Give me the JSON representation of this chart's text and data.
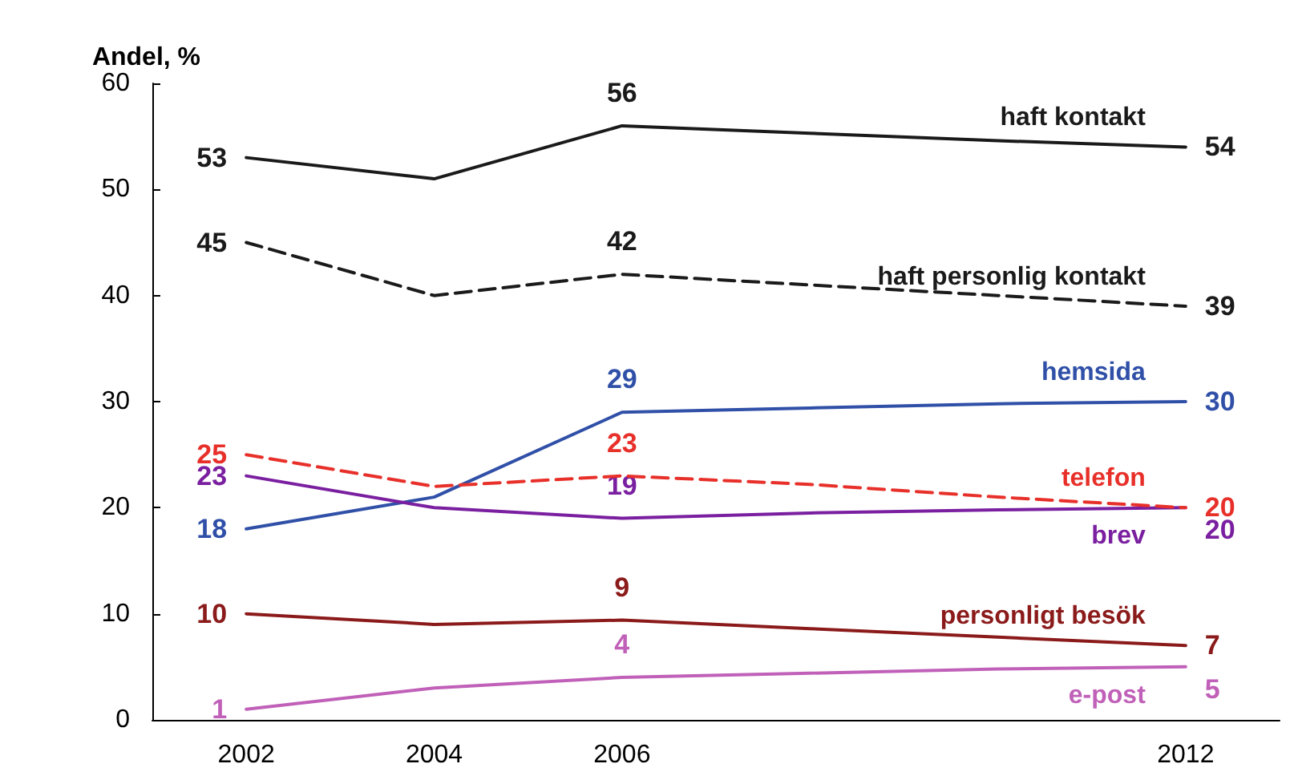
{
  "chart_data": {
    "type": "line",
    "ylabel": "Andel, %",
    "x": [
      2002,
      2004,
      2006,
      2008,
      2010,
      2012
    ],
    "xlim": [
      2001,
      2013
    ],
    "xticks": [
      2002,
      2004,
      2006,
      2012
    ],
    "ylim": [
      0,
      60
    ],
    "yticks": [
      0,
      10,
      20,
      30,
      40,
      50,
      60
    ],
    "grid": false,
    "legend": false,
    "marker": "none",
    "series": [
      {
        "name": "haft kontakt",
        "color": "#1a1a1a",
        "line_style": "solid",
        "values": [
          53,
          51,
          56,
          55.3,
          54.6,
          54
        ],
        "value_labels": [
          "53",
          null,
          "56",
          null,
          null,
          "54"
        ]
      },
      {
        "name": "haft personlig kontakt",
        "color": "#1a1a1a",
        "line_style": "dashed",
        "values": [
          45,
          40,
          42,
          41,
          40,
          39
        ],
        "value_labels": [
          "45",
          null,
          "42",
          null,
          null,
          "39"
        ]
      },
      {
        "name": "hemsida",
        "color": "#3050a8",
        "line_style": "solid",
        "values": [
          18,
          21,
          29,
          29.4,
          29.8,
          30
        ],
        "value_labels": [
          "18",
          null,
          "29",
          null,
          null,
          "30"
        ]
      },
      {
        "name": "telefon",
        "color": "#e8302a",
        "line_style": "dashed",
        "values": [
          25,
          22,
          23,
          22.2,
          21,
          20
        ],
        "value_labels": [
          "25",
          null,
          "23",
          null,
          null,
          "20"
        ]
      },
      {
        "name": "brev",
        "color": "#7a1fa0",
        "line_style": "solid",
        "values": [
          23,
          20,
          19,
          19.5,
          19.8,
          20
        ],
        "value_labels": [
          "23",
          null,
          "19",
          null,
          null,
          "20"
        ]
      },
      {
        "name": "personligt besök",
        "color": "#8b1a1a",
        "line_style": "solid",
        "values": [
          10,
          9,
          9.4,
          8.6,
          7.8,
          7
        ],
        "value_labels": [
          "10",
          null,
          "9",
          null,
          null,
          "7"
        ]
      },
      {
        "name": "e-post",
        "color": "#c060b8",
        "line_style": "solid",
        "values": [
          1,
          3,
          4,
          4.4,
          4.8,
          5
        ],
        "value_labels": [
          "1",
          null,
          "4",
          null,
          null,
          "5"
        ]
      }
    ]
  }
}
